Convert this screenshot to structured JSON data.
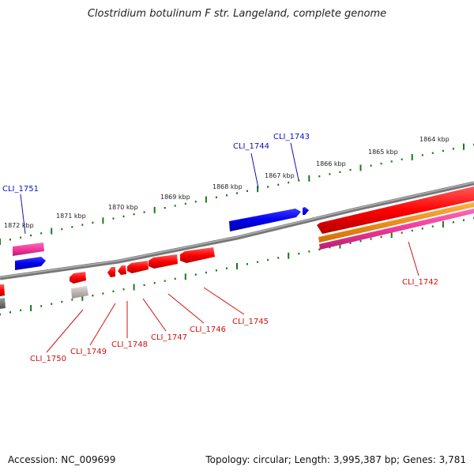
{
  "title": "Clostridium botulinum F str. Langeland, complete genome",
  "footer": {
    "accession": "Accession: NC_009699",
    "topology": "Topology: circular; Length: 3,995,387 bp; Genes: 3,781"
  },
  "colors": {
    "backbone": "#808080",
    "tick": "#1a7a1a",
    "forward_gene": "#1010e8",
    "reverse_gene": "#f00000",
    "rna_pink": "#f0389a",
    "orange": "#f08c00",
    "pseudo_gray": "#b8b0b0",
    "forward_label": "#1010c0",
    "reverse_label": "#d01010"
  },
  "scale_labels": [
    "1864 kbp",
    "1865 kbp",
    "1866 kbp",
    "1867 kbp",
    "1868 kbp",
    "1869 kbp",
    "1870 kbp",
    "1871 kbp",
    "1872 kbp"
  ],
  "gene_labels": {
    "forward": [
      "CLI_1743",
      "CLI_1744",
      "CLI_1751"
    ],
    "reverse": [
      "CLI_1742",
      "CLI_1745",
      "CLI_1746",
      "CLI_1747",
      "CLI_1748",
      "CLI_1749",
      "CLI_1750"
    ]
  }
}
